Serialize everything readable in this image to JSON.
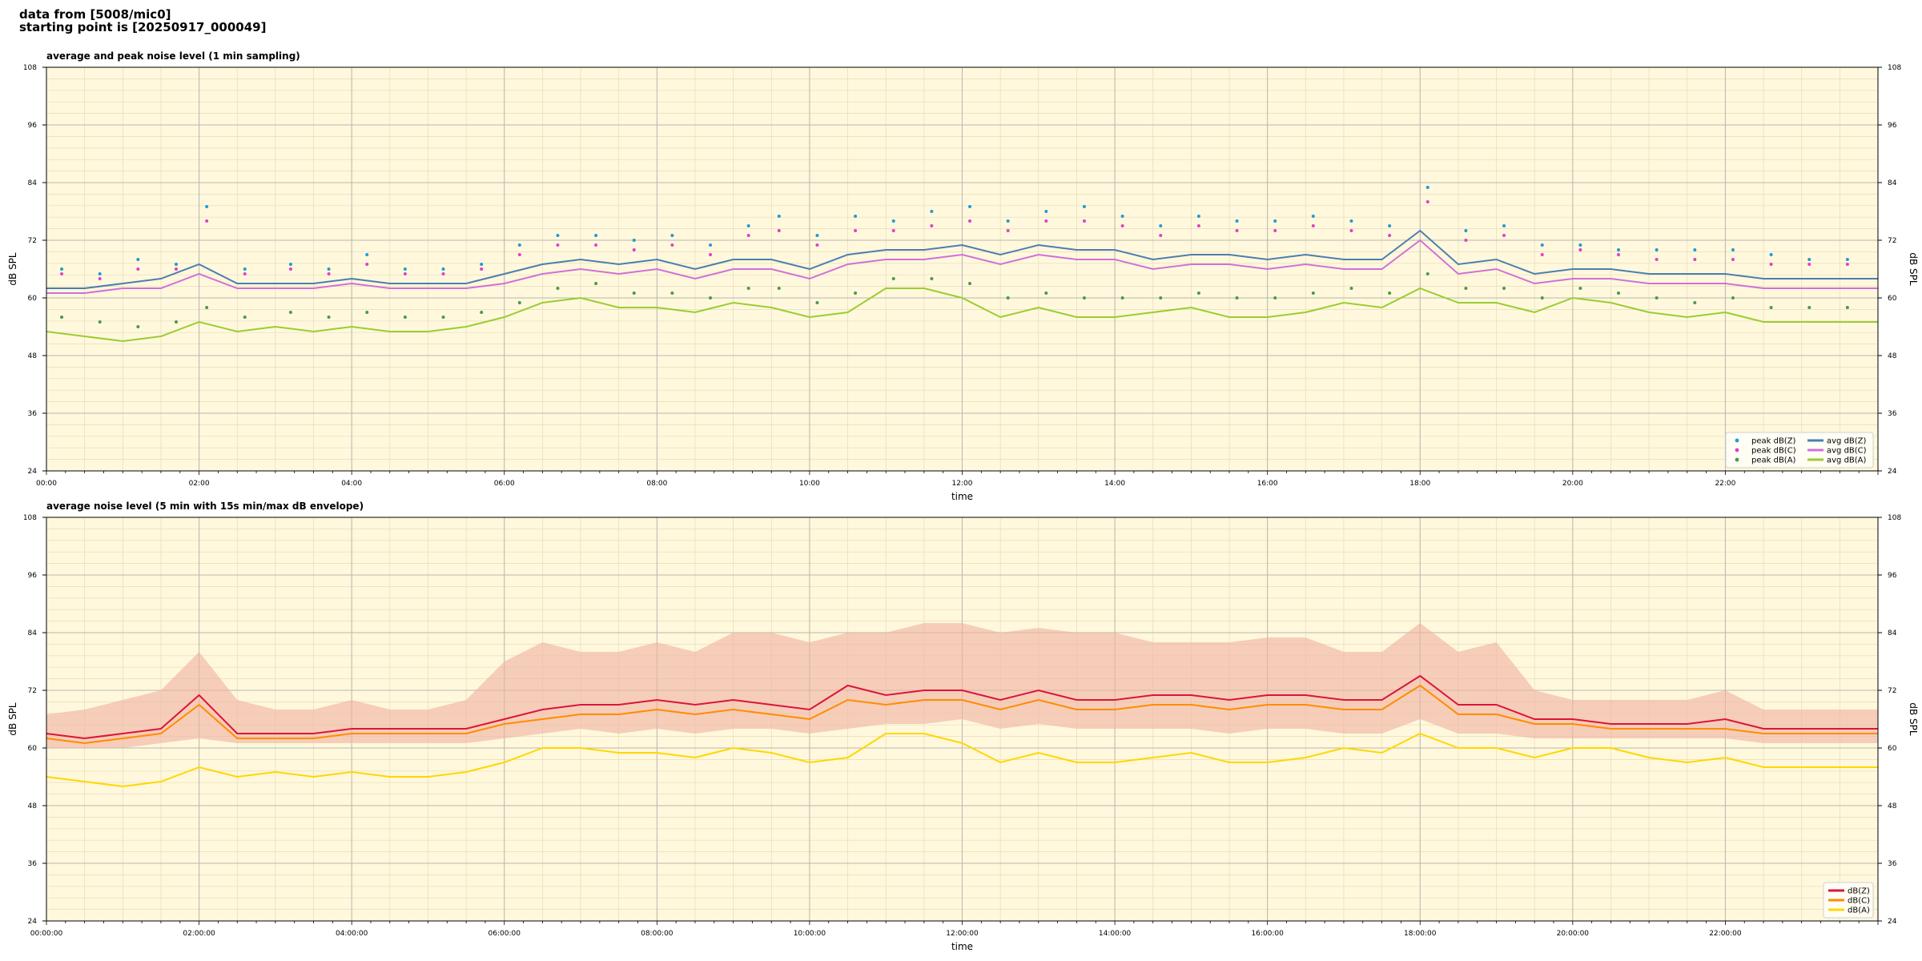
{
  "header": {
    "line1": "data from [5008/mic0]",
    "line2": "starting point is [20250917_000049]"
  },
  "colors": {
    "plot_bg": "#fff8dc",
    "peak_z": "#1f9bd6",
    "peak_c": "#e040c8",
    "peak_a": "#4a9a4a",
    "avg_z": "#4a7fb0",
    "avg_c": "#d070d8",
    "avg_a": "#9acd32",
    "env_z": "#dc143c",
    "env_c": "#ff8c00",
    "env_a": "#ffd700",
    "envelope_fill": "#f0b0a0"
  },
  "chart_data": [
    {
      "type": "line",
      "title": "average and peak noise level (1 min sampling)",
      "xlabel": "time",
      "ylabel": "dB SPL",
      "ylim": [
        24,
        108
      ],
      "xlim_hours": [
        0,
        24
      ],
      "yticks": [
        24,
        36,
        48,
        60,
        72,
        84,
        96,
        108
      ],
      "xtick_labels": [
        "00:00",
        "02:00",
        "04:00",
        "06:00",
        "08:00",
        "10:00",
        "12:00",
        "14:00",
        "16:00",
        "18:00",
        "20:00",
        "22:00"
      ],
      "grid": true,
      "legend_position": "lower-right",
      "legend": [
        {
          "label": "peak dB(Z)",
          "kind": "dot",
          "color_key": "peak_z"
        },
        {
          "label": "peak dB(C)",
          "kind": "dot",
          "color_key": "peak_c"
        },
        {
          "label": "peak dB(A)",
          "kind": "dot",
          "color_key": "peak_a"
        },
        {
          "label": "avg dB(Z)",
          "kind": "line",
          "color_key": "avg_z"
        },
        {
          "label": "avg dB(C)",
          "kind": "line",
          "color_key": "avg_c"
        },
        {
          "label": "avg dB(A)",
          "kind": "line",
          "color_key": "avg_a"
        }
      ],
      "series": [
        {
          "name": "avg dB(Z)",
          "color_key": "avg_z",
          "x": [
            0,
            0.5,
            1,
            1.5,
            2,
            2.5,
            3,
            3.5,
            4,
            4.5,
            5,
            5.5,
            6,
            6.5,
            7,
            7.5,
            8,
            8.5,
            9,
            9.5,
            10,
            10.5,
            11,
            11.5,
            12,
            12.5,
            13,
            13.5,
            14,
            14.5,
            15,
            15.5,
            16,
            16.5,
            17,
            17.5,
            18,
            18.5,
            19,
            19.5,
            20,
            20.5,
            21,
            21.5,
            22,
            22.5,
            23,
            23.5,
            24
          ],
          "y": [
            62,
            62,
            63,
            64,
            67,
            63,
            63,
            63,
            64,
            63,
            63,
            63,
            65,
            67,
            68,
            67,
            68,
            66,
            68,
            68,
            66,
            69,
            70,
            70,
            71,
            69,
            71,
            70,
            70,
            68,
            69,
            69,
            68,
            69,
            68,
            68,
            74,
            67,
            68,
            65,
            66,
            66,
            65,
            65,
            65,
            64,
            64,
            64,
            64
          ]
        },
        {
          "name": "avg dB(C)",
          "color_key": "avg_c",
          "x": [
            0,
            0.5,
            1,
            1.5,
            2,
            2.5,
            3,
            3.5,
            4,
            4.5,
            5,
            5.5,
            6,
            6.5,
            7,
            7.5,
            8,
            8.5,
            9,
            9.5,
            10,
            10.5,
            11,
            11.5,
            12,
            12.5,
            13,
            13.5,
            14,
            14.5,
            15,
            15.5,
            16,
            16.5,
            17,
            17.5,
            18,
            18.5,
            19,
            19.5,
            20,
            20.5,
            21,
            21.5,
            22,
            22.5,
            23,
            23.5,
            24
          ],
          "y": [
            61,
            61,
            62,
            62,
            65,
            62,
            62,
            62,
            63,
            62,
            62,
            62,
            63,
            65,
            66,
            65,
            66,
            64,
            66,
            66,
            64,
            67,
            68,
            68,
            69,
            67,
            69,
            68,
            68,
            66,
            67,
            67,
            66,
            67,
            66,
            66,
            72,
            65,
            66,
            63,
            64,
            64,
            63,
            63,
            63,
            62,
            62,
            62,
            62
          ]
        },
        {
          "name": "avg dB(A)",
          "color_key": "avg_a",
          "x": [
            0,
            0.5,
            1,
            1.5,
            2,
            2.5,
            3,
            3.5,
            4,
            4.5,
            5,
            5.5,
            6,
            6.5,
            7,
            7.5,
            8,
            8.5,
            9,
            9.5,
            10,
            10.5,
            11,
            11.5,
            12,
            12.5,
            13,
            13.5,
            14,
            14.5,
            15,
            15.5,
            16,
            16.5,
            17,
            17.5,
            18,
            18.5,
            19,
            19.5,
            20,
            20.5,
            21,
            21.5,
            22,
            22.5,
            23,
            23.5,
            24
          ],
          "y": [
            53,
            52,
            51,
            52,
            55,
            53,
            54,
            53,
            54,
            53,
            53,
            54,
            56,
            59,
            60,
            58,
            58,
            57,
            59,
            58,
            56,
            57,
            62,
            62,
            60,
            56,
            58,
            56,
            56,
            57,
            58,
            56,
            56,
            57,
            59,
            58,
            62,
            59,
            59,
            57,
            60,
            59,
            57,
            56,
            57,
            55,
            55,
            55,
            55
          ]
        }
      ],
      "peak_points": {
        "x": [
          0.2,
          0.7,
          1.2,
          1.7,
          2.1,
          2.6,
          3.2,
          3.7,
          4.2,
          4.7,
          5.2,
          5.7,
          6.2,
          6.7,
          7.2,
          7.7,
          8.2,
          8.7,
          9.2,
          9.6,
          10.1,
          10.6,
          11.1,
          11.6,
          12.1,
          12.6,
          13.1,
          13.6,
          14.1,
          14.6,
          15.1,
          15.6,
          16.1,
          16.6,
          17.1,
          17.6,
          18.1,
          18.6,
          19.1,
          19.6,
          20.1,
          20.6,
          21.1,
          21.6,
          22.1,
          22.6,
          23.1,
          23.6
        ],
        "z": [
          66,
          65,
          68,
          67,
          79,
          66,
          67,
          66,
          69,
          66,
          66,
          67,
          71,
          73,
          73,
          72,
          73,
          71,
          75,
          77,
          73,
          77,
          76,
          78,
          79,
          76,
          78,
          79,
          77,
          75,
          77,
          76,
          76,
          77,
          76,
          75,
          83,
          74,
          75,
          71,
          71,
          70,
          70,
          70,
          70,
          69,
          68,
          68
        ],
        "c": [
          65,
          64,
          66,
          66,
          76,
          65,
          66,
          65,
          67,
          65,
          65,
          66,
          69,
          71,
          71,
          70,
          71,
          69,
          73,
          74,
          71,
          74,
          74,
          75,
          76,
          74,
          76,
          76,
          75,
          73,
          75,
          74,
          74,
          75,
          74,
          73,
          80,
          72,
          73,
          69,
          70,
          69,
          68,
          68,
          68,
          67,
          67,
          67
        ],
        "a": [
          56,
          55,
          54,
          55,
          58,
          56,
          57,
          56,
          57,
          56,
          56,
          57,
          59,
          62,
          63,
          61,
          61,
          60,
          62,
          62,
          59,
          61,
          64,
          64,
          63,
          60,
          61,
          60,
          60,
          60,
          61,
          60,
          60,
          61,
          62,
          61,
          65,
          62,
          62,
          60,
          62,
          61,
          60,
          59,
          60,
          58,
          58,
          58
        ]
      }
    },
    {
      "type": "line",
      "title": "average noise level (5 min with 15s min/max dB envelope)",
      "xlabel": "time",
      "ylabel": "dB SPL",
      "ylim": [
        24,
        108
      ],
      "xlim_hours": [
        0,
        24
      ],
      "yticks": [
        24,
        36,
        48,
        60,
        72,
        84,
        96,
        108
      ],
      "xtick_labels": [
        "00:00:00",
        "02:00:00",
        "04:00:00",
        "06:00:00",
        "08:00:00",
        "10:00:00",
        "12:00:00",
        "14:00:00",
        "16:00:00",
        "18:00:00",
        "20:00:00",
        "22:00:00"
      ],
      "grid": true,
      "legend_position": "lower-right",
      "legend": [
        {
          "label": "dB(Z)",
          "kind": "line",
          "color_key": "env_z"
        },
        {
          "label": "dB(C)",
          "kind": "line",
          "color_key": "env_c"
        },
        {
          "label": "dB(A)",
          "kind": "line",
          "color_key": "env_a"
        }
      ],
      "series": [
        {
          "name": "dB(Z)",
          "color_key": "env_z",
          "x": [
            0,
            0.5,
            1,
            1.5,
            2,
            2.5,
            3,
            3.5,
            4,
            4.5,
            5,
            5.5,
            6,
            6.5,
            7,
            7.5,
            8,
            8.5,
            9,
            9.5,
            10,
            10.5,
            11,
            11.5,
            12,
            12.5,
            13,
            13.5,
            14,
            14.5,
            15,
            15.5,
            16,
            16.5,
            17,
            17.5,
            18,
            18.5,
            19,
            19.5,
            20,
            20.5,
            21,
            21.5,
            22,
            22.5,
            23,
            23.5,
            24
          ],
          "y": [
            63,
            62,
            63,
            64,
            71,
            63,
            63,
            63,
            64,
            64,
            64,
            64,
            66,
            68,
            69,
            69,
            70,
            69,
            70,
            69,
            68,
            73,
            71,
            72,
            72,
            70,
            72,
            70,
            70,
            71,
            71,
            70,
            71,
            71,
            70,
            70,
            75,
            69,
            69,
            66,
            66,
            65,
            65,
            65,
            66,
            64,
            64,
            64,
            64
          ]
        },
        {
          "name": "dB(C)",
          "color_key": "env_c",
          "x": [
            0,
            0.5,
            1,
            1.5,
            2,
            2.5,
            3,
            3.5,
            4,
            4.5,
            5,
            5.5,
            6,
            6.5,
            7,
            7.5,
            8,
            8.5,
            9,
            9.5,
            10,
            10.5,
            11,
            11.5,
            12,
            12.5,
            13,
            13.5,
            14,
            14.5,
            15,
            15.5,
            16,
            16.5,
            17,
            17.5,
            18,
            18.5,
            19,
            19.5,
            20,
            20.5,
            21,
            21.5,
            22,
            22.5,
            23,
            23.5,
            24
          ],
          "y": [
            62,
            61,
            62,
            63,
            69,
            62,
            62,
            62,
            63,
            63,
            63,
            63,
            65,
            66,
            67,
            67,
            68,
            67,
            68,
            67,
            66,
            70,
            69,
            70,
            70,
            68,
            70,
            68,
            68,
            69,
            69,
            68,
            69,
            69,
            68,
            68,
            73,
            67,
            67,
            65,
            65,
            64,
            64,
            64,
            64,
            63,
            63,
            63,
            63
          ]
        },
        {
          "name": "dB(A)",
          "color_key": "env_a",
          "x": [
            0,
            0.5,
            1,
            1.5,
            2,
            2.5,
            3,
            3.5,
            4,
            4.5,
            5,
            5.5,
            6,
            6.5,
            7,
            7.5,
            8,
            8.5,
            9,
            9.5,
            10,
            10.5,
            11,
            11.5,
            12,
            12.5,
            13,
            13.5,
            14,
            14.5,
            15,
            15.5,
            16,
            16.5,
            17,
            17.5,
            18,
            18.5,
            19,
            19.5,
            20,
            20.5,
            21,
            21.5,
            22,
            22.5,
            23,
            23.5,
            24
          ],
          "y": [
            54,
            53,
            52,
            53,
            56,
            54,
            55,
            54,
            55,
            54,
            54,
            55,
            57,
            60,
            60,
            59,
            59,
            58,
            60,
            59,
            57,
            58,
            63,
            63,
            61,
            57,
            59,
            57,
            57,
            58,
            59,
            57,
            57,
            58,
            60,
            59,
            63,
            60,
            60,
            58,
            60,
            60,
            58,
            57,
            58,
            56,
            56,
            56,
            56
          ]
        }
      ],
      "envelope": {
        "x": [
          0,
          0.5,
          1,
          1.5,
          2,
          2.5,
          3,
          3.5,
          4,
          4.5,
          5,
          5.5,
          6,
          6.5,
          7,
          7.5,
          8,
          8.5,
          9,
          9.5,
          10,
          10.5,
          11,
          11.5,
          12,
          12.5,
          13,
          13.5,
          14,
          14.5,
          15,
          15.5,
          16,
          16.5,
          17,
          17.5,
          18,
          18.5,
          19,
          19.5,
          20,
          20.5,
          21,
          21.5,
          22,
          22.5,
          23,
          23.5,
          24
        ],
        "min": [
          60,
          60,
          60,
          61,
          62,
          61,
          61,
          61,
          61,
          61,
          61,
          61,
          62,
          63,
          64,
          63,
          64,
          63,
          64,
          64,
          63,
          64,
          65,
          65,
          66,
          64,
          65,
          64,
          64,
          64,
          64,
          63,
          64,
          64,
          63,
          63,
          66,
          63,
          63,
          62,
          62,
          62,
          62,
          62,
          62,
          61,
          61,
          61,
          61
        ],
        "max": [
          67,
          68,
          70,
          72,
          80,
          70,
          68,
          68,
          70,
          68,
          68,
          70,
          78,
          82,
          80,
          80,
          82,
          80,
          84,
          84,
          82,
          84,
          84,
          86,
          86,
          84,
          85,
          84,
          84,
          82,
          82,
          82,
          83,
          83,
          80,
          80,
          86,
          80,
          82,
          72,
          70,
          70,
          70,
          70,
          72,
          68,
          68,
          68,
          68
        ]
      }
    }
  ]
}
